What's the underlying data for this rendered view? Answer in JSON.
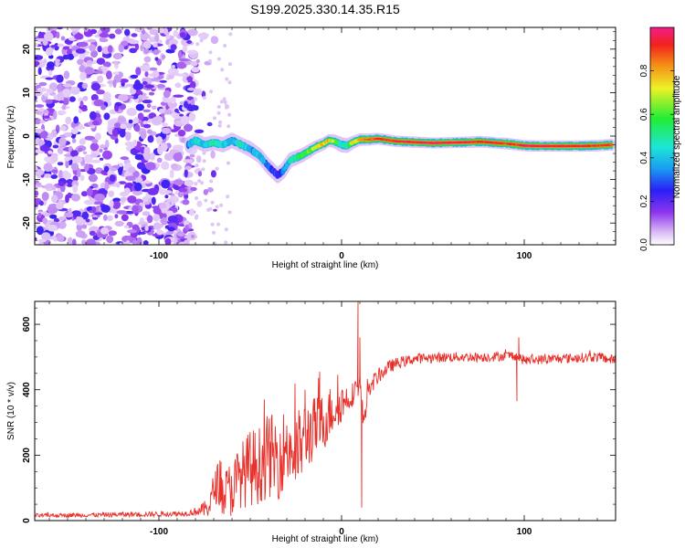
{
  "title": "S199.2025.330.14.35.R15",
  "chart_data": [
    {
      "type": "heatmap",
      "name": "spectrogram",
      "xlabel": "Height of straight line (km)",
      "ylabel": "Frequency (Hz)",
      "xlim": [
        -168,
        150
      ],
      "ylim": [
        -25,
        25
      ],
      "x_ticks": [
        -100,
        0,
        100
      ],
      "y_ticks": [
        -20,
        -10,
        0,
        10,
        20
      ],
      "noise_region_x": [
        -168,
        -80
      ],
      "ridge": {
        "x": [
          -84,
          -80,
          -75,
          -70,
          -65,
          -60,
          -55,
          -50,
          -45,
          -40,
          -35,
          -32,
          -28,
          -22,
          -18,
          -14,
          -10,
          -7,
          -4,
          0,
          3,
          6,
          10,
          15,
          20,
          30,
          40,
          50,
          60,
          70,
          75,
          80,
          85,
          90,
          100,
          110,
          120,
          130,
          140,
          148
        ],
        "y": [
          -2,
          -1,
          -2,
          -1.5,
          -2,
          -1,
          -2,
          -3,
          -4.5,
          -7,
          -9,
          -8,
          -5.5,
          -4.5,
          -3.5,
          -2.5,
          -1.8,
          -1,
          -1.2,
          -2,
          -2.2,
          -1.5,
          -0.8,
          -0.8,
          -0.6,
          -1.2,
          -1.4,
          -1.6,
          -1.5,
          -1.4,
          -1.3,
          -1.4,
          -1.6,
          -1.7,
          -2.2,
          -2.3,
          -2.3,
          -2.3,
          -2.2,
          -2.0
        ],
        "amplitude": [
          0.35,
          0.45,
          0.4,
          0.5,
          0.4,
          0.35,
          0.45,
          0.35,
          0.4,
          0.3,
          0.25,
          0.3,
          0.45,
          0.55,
          0.6,
          0.7,
          0.75,
          0.8,
          0.6,
          0.4,
          0.5,
          0.7,
          0.8,
          0.85,
          0.9,
          0.95,
          0.95,
          1.0,
          0.98,
          0.95,
          0.9,
          0.92,
          0.95,
          0.9,
          0.95,
          0.97,
          0.96,
          0.95,
          0.92,
          0.9
        ]
      },
      "colorbar": {
        "label": "Normalized spectral amplitude",
        "ticks": [
          0.0,
          0.2,
          0.4,
          0.6,
          0.8
        ],
        "tick_labels": [
          "0.0",
          "0.2",
          "0.4",
          "0.6",
          "0.8"
        ],
        "range": [
          0,
          1
        ]
      }
    },
    {
      "type": "line",
      "name": "snr",
      "xlabel": "Height of straight line (km)",
      "ylabel": "SNR (10 * v/v)",
      "xlim": [
        -168,
        150
      ],
      "ylim": [
        0,
        670
      ],
      "x_ticks": [
        -100,
        0,
        100
      ],
      "y_ticks": [
        0,
        200,
        400,
        600
      ],
      "line_color": "#e8302a",
      "envelope": {
        "x": [
          -168,
          -100,
          -85,
          -78,
          -75,
          -72,
          -70,
          -68,
          -65,
          -60,
          -55,
          -50,
          -45,
          -40,
          -35,
          -30,
          -25,
          -20,
          -15,
          -10,
          -5,
          0,
          5,
          8,
          10,
          12,
          14,
          18,
          22,
          26,
          30,
          40,
          60,
          80,
          95,
          100,
          120,
          140,
          150
        ],
        "y": [
          15,
          20,
          22,
          30,
          35,
          50,
          90,
          120,
          80,
          100,
          140,
          160,
          170,
          200,
          190,
          230,
          200,
          260,
          280,
          300,
          340,
          360,
          380,
          400,
          420,
          300,
          380,
          430,
          450,
          470,
          480,
          495,
          500,
          500,
          505,
          490,
          495,
          500,
          490
        ],
        "noise": [
          6,
          8,
          8,
          15,
          25,
          40,
          60,
          60,
          70,
          90,
          100,
          120,
          120,
          130,
          130,
          120,
          130,
          110,
          100,
          90,
          80,
          60,
          40,
          30,
          30,
          40,
          30,
          25,
          20,
          20,
          18,
          16,
          15,
          15,
          15,
          15,
          15,
          15,
          15
        ]
      },
      "spikes": [
        {
          "x": 9,
          "y": 668
        },
        {
          "x": 10,
          "y": 560
        },
        {
          "x": 11,
          "y": 40
        },
        {
          "x": -12,
          "y": 455
        },
        {
          "x": -20,
          "y": 400
        },
        {
          "x": -66,
          "y": 180
        },
        {
          "x": 96,
          "y": 365
        },
        {
          "x": 97,
          "y": 560
        }
      ]
    }
  ]
}
